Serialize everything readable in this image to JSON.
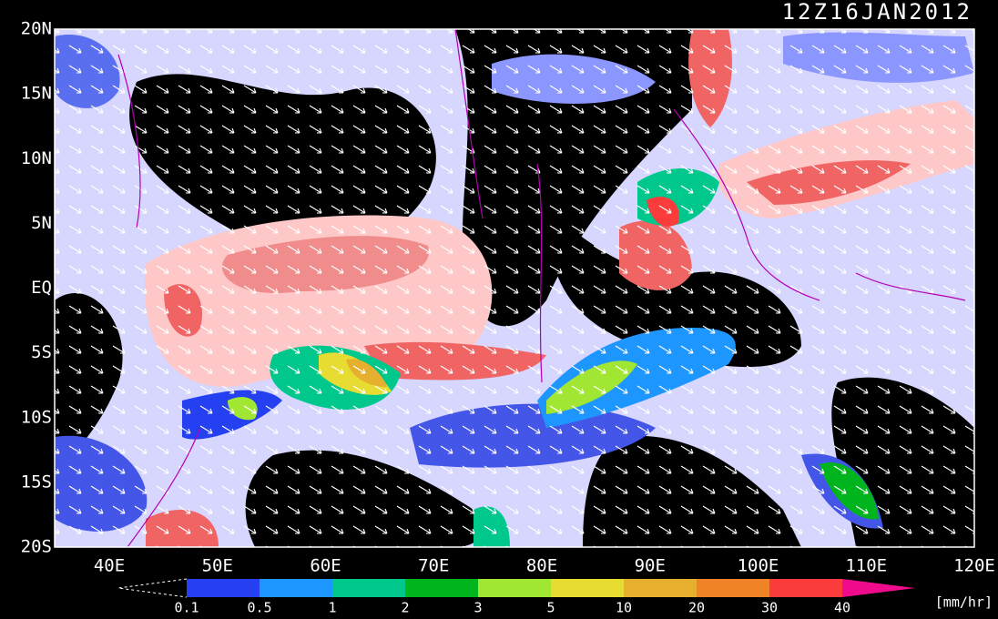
{
  "header": {
    "title": "12Z16JAN2012"
  },
  "map": {
    "lat_labels": [
      "20N",
      "15N",
      "10N",
      "5N",
      "EQ",
      "5S",
      "10S",
      "15S",
      "20S"
    ],
    "lon_labels": [
      "40E",
      "50E",
      "60E",
      "70E",
      "80E",
      "90E",
      "100E",
      "110E",
      "120E"
    ]
  },
  "colorbar": {
    "labels": [
      0.1,
      0.5,
      1,
      2,
      3,
      5,
      10,
      20,
      30,
      40
    ],
    "colors": [
      "#2440f0",
      "#1e96ff",
      "#00c88c",
      "#00b41e",
      "#a0e632",
      "#e6dc32",
      "#e6af2d",
      "#f08228",
      "#fa3c3c"
    ],
    "over_color": "#f00a8c",
    "units": "[mm/hr]"
  }
}
